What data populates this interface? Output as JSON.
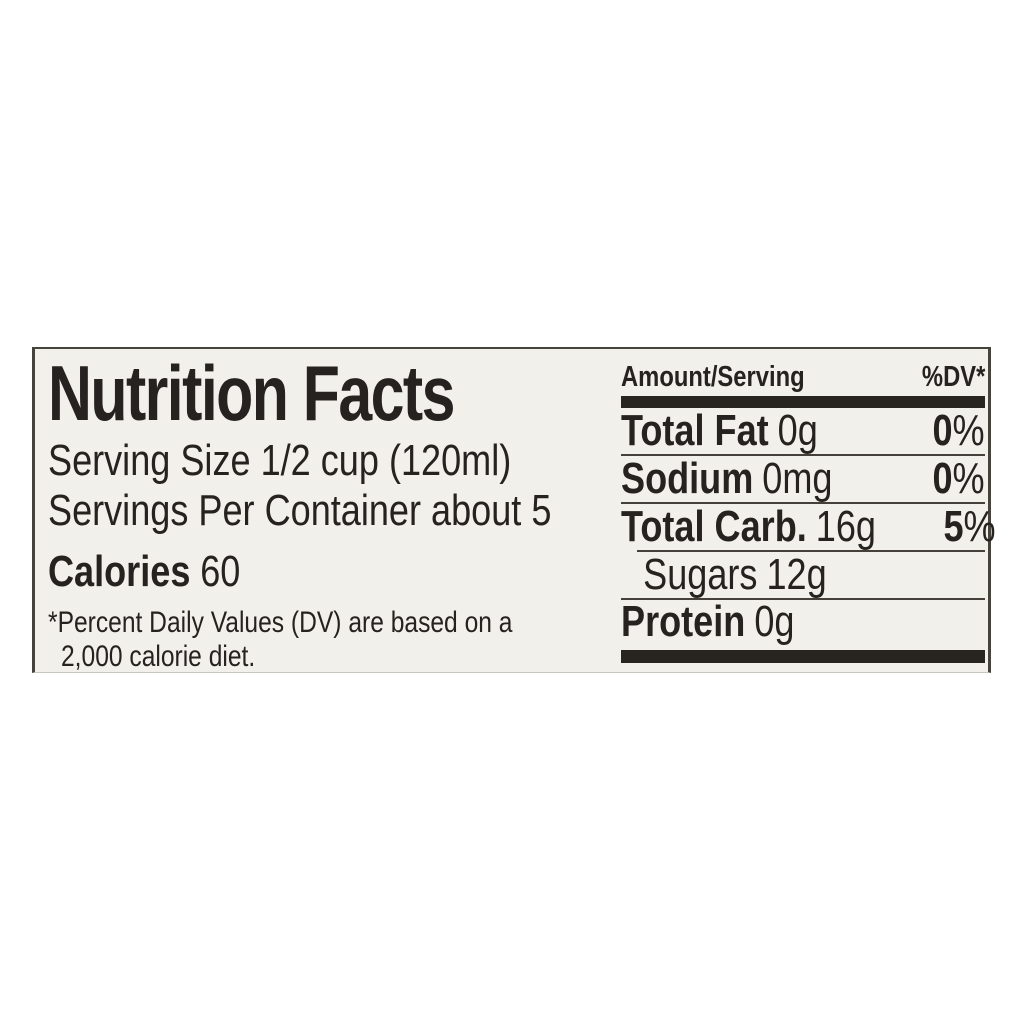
{
  "label": {
    "title": "Nutrition Facts",
    "serving_size": "Serving Size 1/2 cup (120ml)",
    "servings_per_container": "Servings Per Container about 5",
    "calories_label": "Calories",
    "calories_value": "60",
    "footnote_line1": "*Percent Daily Values (DV) are based on a",
    "footnote_line2": "2,000 calorie diet.",
    "table": {
      "header_amount": "Amount/Serving",
      "header_dv": "%DV*",
      "rows": [
        {
          "name": "Total Fat",
          "amount": "0g",
          "dv_num": "0",
          "dv_sign": "%"
        },
        {
          "name": "Sodium",
          "amount": "0mg",
          "dv_num": "0",
          "dv_sign": "%"
        },
        {
          "name": "Total Carb.",
          "amount": "16g",
          "dv_num": "5",
          "dv_sign": "%"
        },
        {
          "name": "Sugars",
          "amount": "12g"
        },
        {
          "name": "Protein",
          "amount": "0g"
        }
      ]
    }
  },
  "colors": {
    "page_background": "#ffffff",
    "label_background": "#f1f0eb",
    "ink": "#262220",
    "thick_bar": "#282420",
    "hairline": "#45403a",
    "border": "#46423c"
  }
}
